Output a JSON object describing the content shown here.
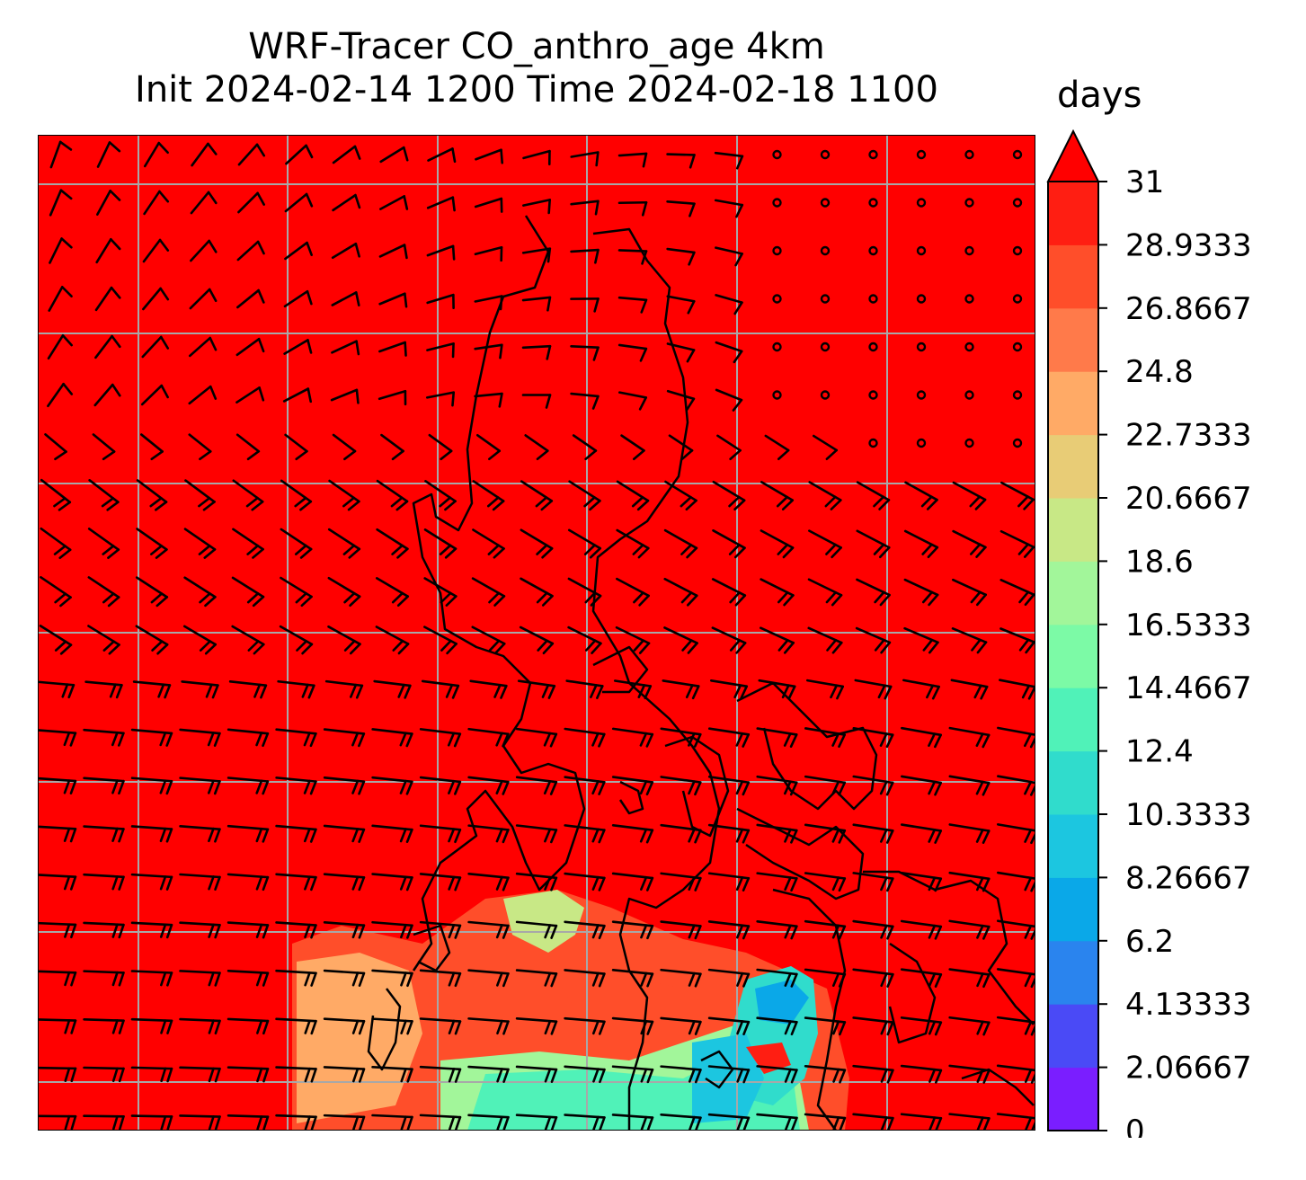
{
  "chart_data": {
    "type": "heatmap",
    "title_line1": "WRF-Tracer CO_anthro_age 4km",
    "title_line2": "Init 2024-02-14 1200 Time 2024-02-18 1100",
    "colorbar_label": "days",
    "colorbar_extend": "max",
    "colorbar_ticks": [
      "0",
      "2.06667",
      "4.13333",
      "6.2",
      "8.26667",
      "10.3333",
      "12.4",
      "14.4667",
      "16.5333",
      "18.6",
      "20.6667",
      "22.7333",
      "24.8",
      "26.8667",
      "28.9333",
      "31"
    ],
    "levels": [
      0,
      2.06667,
      4.13333,
      6.2,
      8.26667,
      10.3333,
      12.4,
      14.4667,
      16.5333,
      18.6,
      20.6667,
      22.7333,
      24.8,
      26.8667,
      28.9333,
      31
    ],
    "level_colors": [
      "#7a1eff",
      "#4a4af6",
      "#2a84ee",
      "#0aa8e8",
      "#1cc6e0",
      "#30dccc",
      "#50f2b8",
      "#7cfaa6",
      "#a2f69a",
      "#c8e886",
      "#e8cc76",
      "#ffaa66",
      "#ff7a4a",
      "#ff4e2a",
      "#ff1e12"
    ],
    "over_color": "#ff0000",
    "field_background_value": ">31",
    "gridlines": true,
    "wind_barbs": true,
    "coastlines": true
  }
}
